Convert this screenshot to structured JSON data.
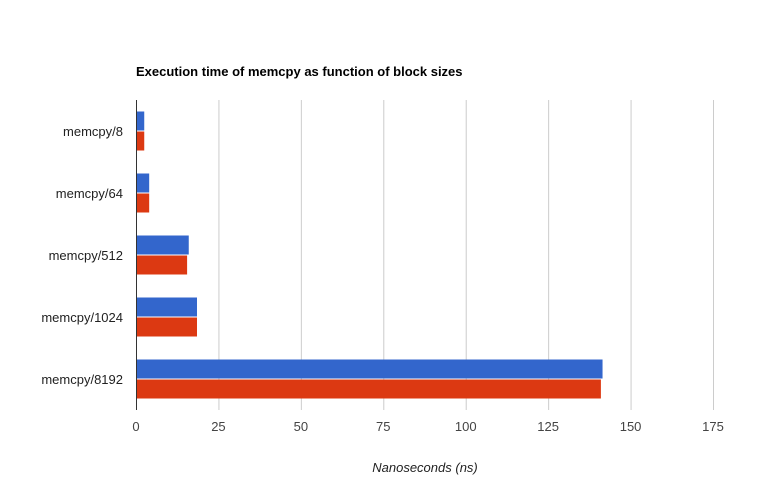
{
  "chart_data": {
    "type": "bar",
    "orientation": "horizontal",
    "title": "Execution time of memcpy as function of block sizes",
    "xlabel": "Nanoseconds (ns)",
    "ylabel": "",
    "categories": [
      "memcpy/8",
      "memcpy/64",
      "memcpy/512",
      "memcpy/1024",
      "memcpy/8192"
    ],
    "series": [
      {
        "color": "#3366cc",
        "values": [
          2.5,
          4,
          16,
          18.5,
          141.5
        ]
      },
      {
        "color": "#dc3912",
        "values": [
          2.5,
          4,
          15.5,
          18.5,
          141
        ]
      }
    ],
    "xlim": [
      0,
      175
    ],
    "xticks": [
      "0",
      "25",
      "50",
      "75",
      "100",
      "125",
      "150",
      "175"
    ],
    "grid": true,
    "legend": "none"
  }
}
